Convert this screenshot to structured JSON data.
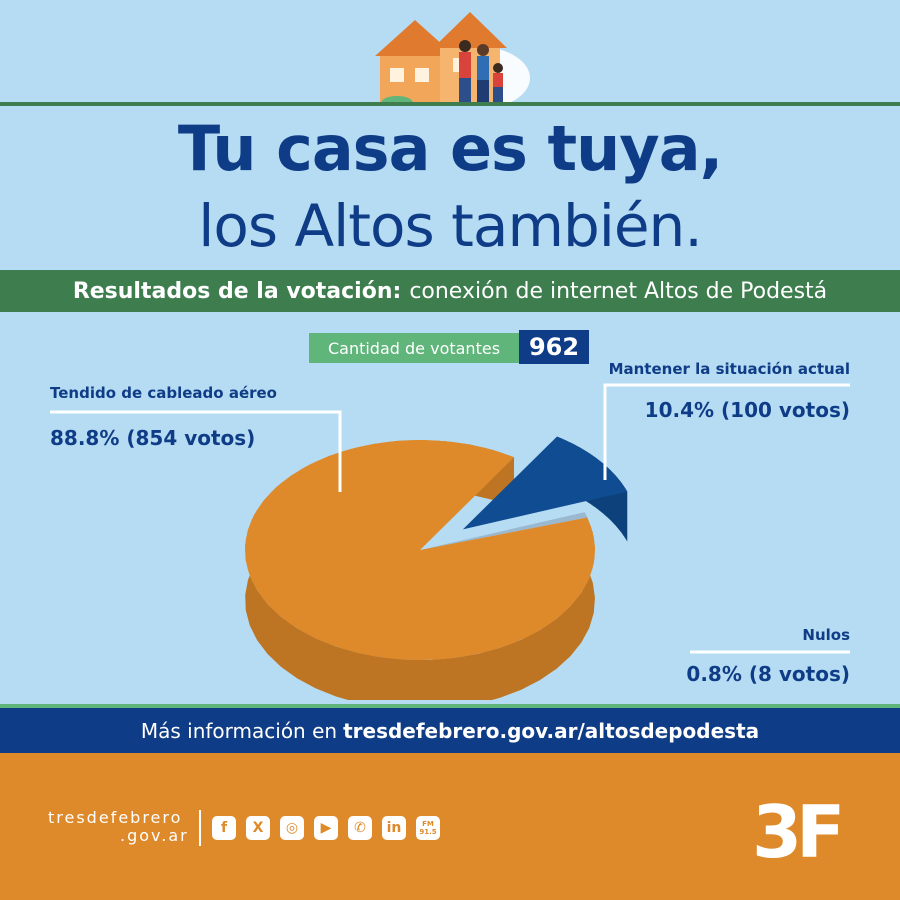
{
  "header": {
    "title_line1": "Tu casa es tuya,",
    "title_line2": "los Altos también."
  },
  "results": {
    "bold": "Resultados de la votación:",
    "rest": "conexión de internet Altos de Podestá"
  },
  "voters": {
    "label": "Cantidad de votantes",
    "value": "962"
  },
  "chart_data": {
    "type": "pie",
    "title": "",
    "slices": [
      {
        "label": "Tendido de cableado aéreo",
        "value": 88.8,
        "votes": 854,
        "display": "88.8% (854 votos)",
        "color": "#de8a2a"
      },
      {
        "label": "Mantener la situación actual",
        "value": 10.4,
        "votes": 100,
        "display": "10.4% (100 votos)",
        "color": "#0f4c92"
      },
      {
        "label": "Nulos",
        "value": 0.8,
        "votes": 8,
        "display": "0.8% (8 votos)",
        "color": "#9ab8cf"
      }
    ]
  },
  "info": {
    "prefix": "Más información en",
    "link": "tresdefebrero.gov.ar/altosdepodesta"
  },
  "footer": {
    "brand_line1": "tresdefebrero",
    "brand_line2": ".gov.ar",
    "social": [
      {
        "icon": "facebook-icon",
        "glyph": "f"
      },
      {
        "icon": "x-icon",
        "glyph": "X"
      },
      {
        "icon": "instagram-icon",
        "glyph": "◎"
      },
      {
        "icon": "youtube-icon",
        "glyph": "▶"
      },
      {
        "icon": "whatsapp-icon",
        "glyph": "✆"
      },
      {
        "icon": "linkedin-icon",
        "glyph": "in"
      },
      {
        "icon": "fm-icon",
        "glyph": "FM 91.5"
      }
    ],
    "logo": "3F"
  }
}
